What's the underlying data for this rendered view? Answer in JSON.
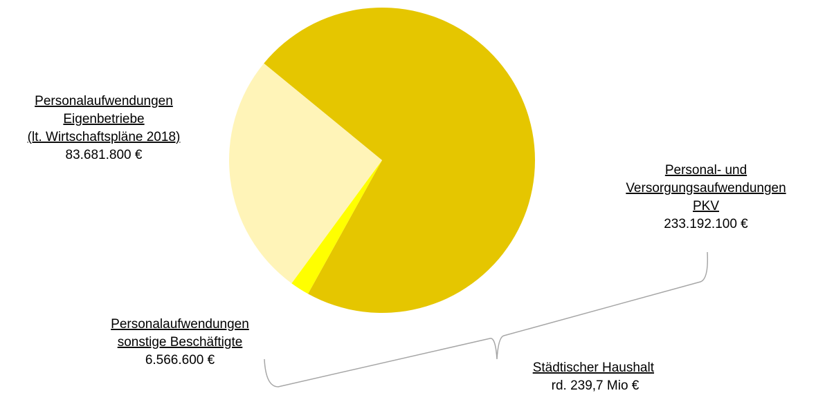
{
  "chart_data": {
    "type": "pie",
    "categories": [
      [
        "Personal- und",
        "Versorgungsaufwendungen",
        "PKV"
      ],
      [
        "Personalaufwendungen",
        "sonstige Beschäftigte"
      ],
      [
        "Personalaufwendungen",
        "Eigenbetriebe",
        "(lt. Wirtschaftspläne 2018)"
      ]
    ],
    "values": [
      233192100,
      6566600,
      83681800
    ],
    "value_labels": [
      "233.192.100 €",
      "6.566.600 €",
      "83.681.800 €"
    ],
    "colors": [
      "#e5c600",
      "#ffff00",
      "#fff4b8"
    ],
    "annotation": [
      "Städtischer Haushalt",
      "rd. 239,7 Mio €"
    ]
  }
}
